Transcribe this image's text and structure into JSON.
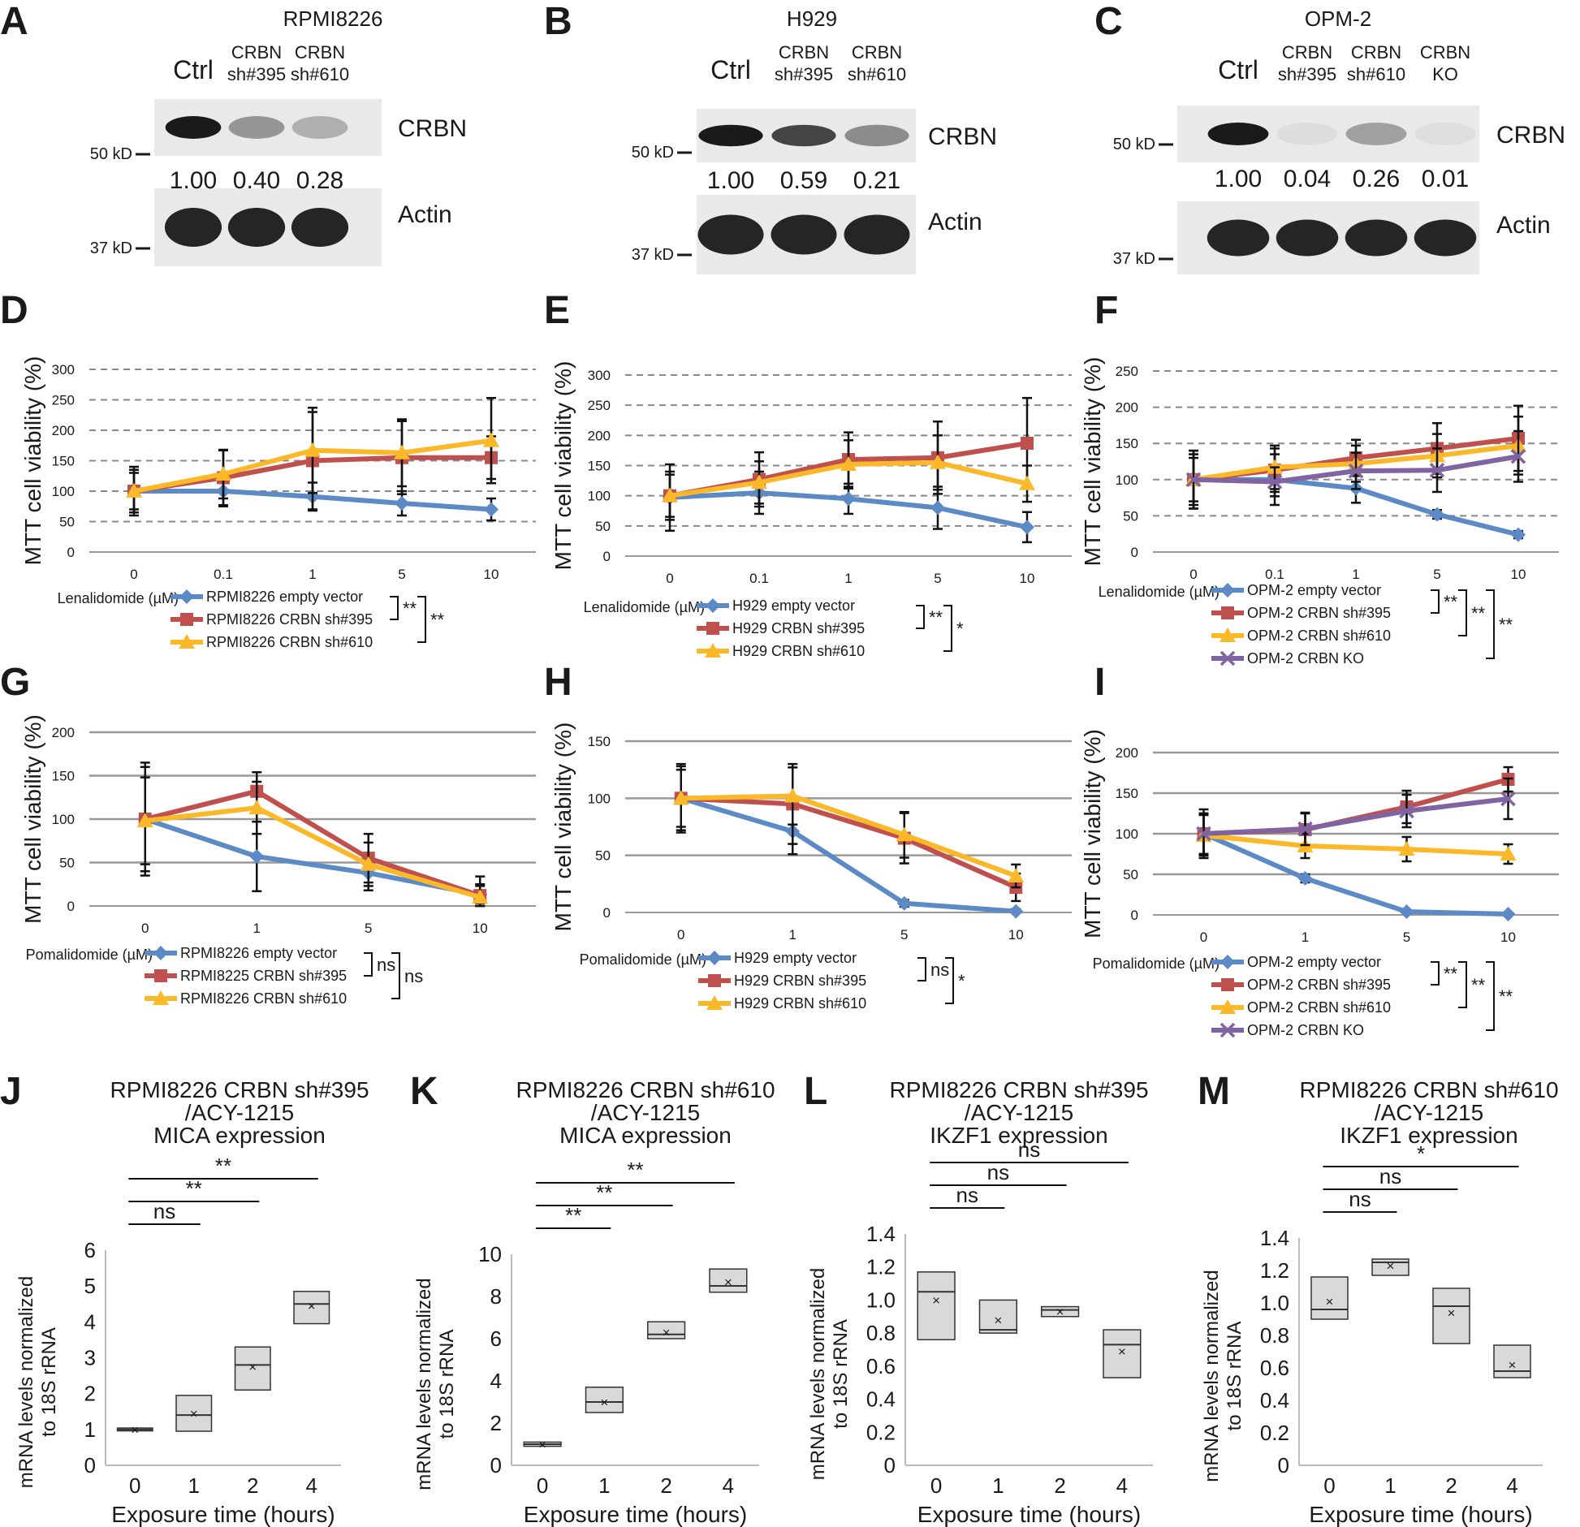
{
  "colors": {
    "blue": "#5b8ac6",
    "red": "#c0504d",
    "yellow": "#fbb829",
    "purple": "#8064a2",
    "grid_dashed": "#888888",
    "grid_solid": "#999999",
    "box_fill": "#d9d9d9",
    "blot_bg": "#e9e9e9",
    "band": "#1a1a1a"
  },
  "western_blots": [
    {
      "panel": "A",
      "cell_line": "RPMI8226",
      "lanes": [
        "Ctrl",
        "CRBN\nsh#395",
        "CRBN\nsh#610"
      ],
      "crbn_label": "CRBN",
      "actin_label": "Actin",
      "quant": [
        "1.00",
        "0.40",
        "0.28"
      ],
      "kd_top": "50 kD",
      "kd_bottom": "37 kD",
      "crbn_intensity": [
        1.0,
        0.4,
        0.28
      ]
    },
    {
      "panel": "B",
      "cell_line": "H929",
      "lanes": [
        "Ctrl",
        "CRBN\nsh#395",
        "CRBN\nsh#610"
      ],
      "crbn_label": "CRBN",
      "actin_label": "Actin",
      "quant": [
        "1.00",
        "0.59",
        "0.21"
      ],
      "kd_top": "50 kD",
      "kd_bottom": "37 kD",
      "crbn_intensity": [
        1.0,
        0.8,
        0.45
      ]
    },
    {
      "panel": "C",
      "cell_line": "OPM-2",
      "lanes": [
        "Ctrl",
        "CRBN\nsh#395",
        "CRBN\nsh#610",
        "CRBN\nKO"
      ],
      "crbn_label": "CRBN",
      "actin_label": "Actin",
      "quant": [
        "1.00",
        "0.04",
        "0.26",
        "0.01"
      ],
      "kd_top": "50 kD",
      "kd_bottom": "37 kD",
      "crbn_intensity": [
        1.0,
        0.06,
        0.35,
        0.03
      ]
    }
  ],
  "chart_data": [
    {
      "panel": "D",
      "type": "line",
      "categories": [
        "0",
        "0.1",
        "1",
        "5",
        "10"
      ],
      "xlabel": "Lenalidomide (µM)",
      "ylabel": "MTT cell viability (%)",
      "ylim": [
        0,
        300
      ],
      "yticks": [
        0,
        50,
        100,
        150,
        200,
        250,
        300
      ],
      "grid": "dashed",
      "series": [
        {
          "name": "RPMI8226 empty vector",
          "color": "blue",
          "marker": "diamond",
          "values": [
            100,
            100,
            91,
            80,
            70
          ],
          "err": [
            40,
            25,
            23,
            20,
            18
          ]
        },
        {
          "name": "RPMI8226 CRBN sh#395",
          "color": "red",
          "marker": "square",
          "values": [
            100,
            122,
            150,
            155,
            155
          ],
          "err": [
            35,
            45,
            80,
            60,
            35
          ]
        },
        {
          "name": "RPMI8226 CRBN sh#610",
          "color": "yellow",
          "marker": "triangle",
          "values": [
            100,
            128,
            167,
            163,
            183
          ],
          "err": [
            30,
            40,
            70,
            55,
            70
          ]
        }
      ],
      "significance": [
        {
          "text": "**",
          "from": 0,
          "to": 1
        },
        {
          "text": "**",
          "from": 0,
          "to": 2
        }
      ]
    },
    {
      "panel": "E",
      "type": "line",
      "categories": [
        "0",
        "0.1",
        "1",
        "5",
        "10"
      ],
      "xlabel": "Lenalidomide (µM)",
      "ylabel": "MTT cell viability (%)",
      "ylim": [
        0,
        300
      ],
      "yticks": [
        0,
        50,
        100,
        150,
        200,
        250,
        300
      ],
      "grid": "dashed",
      "series": [
        {
          "name": "H929 empty vector",
          "color": "blue",
          "marker": "diamond",
          "values": [
            97,
            105,
            95,
            80,
            48
          ],
          "err": [
            55,
            35,
            25,
            35,
            25
          ]
        },
        {
          "name": "H929 CRBN sh#395",
          "color": "red",
          "marker": "square",
          "values": [
            100,
            127,
            160,
            163,
            187
          ],
          "err": [
            40,
            45,
            45,
            60,
            75
          ]
        },
        {
          "name": "H929 CRBN sh#610",
          "color": "yellow",
          "marker": "triangle",
          "values": [
            100,
            122,
            152,
            155,
            120
          ],
          "err": [
            35,
            35,
            40,
            45,
            30
          ]
        }
      ],
      "significance": [
        {
          "text": "**",
          "from": 0,
          "to": 1
        },
        {
          "text": "*",
          "from": 0,
          "to": 2
        }
      ]
    },
    {
      "panel": "F",
      "type": "line",
      "categories": [
        "0",
        "0.1",
        "1",
        "5",
        "10"
      ],
      "xlabel": "Lenalidomide (µM)",
      "ylabel": "MTT cell viability (%)",
      "ylim": [
        0,
        250
      ],
      "yticks": [
        0,
        50,
        100,
        150,
        200,
        250
      ],
      "grid": "dashed",
      "series": [
        {
          "name": "OPM-2 empty vector",
          "color": "blue",
          "marker": "diamond",
          "values": [
            100,
            100,
            88,
            52,
            24
          ],
          "err": [
            40,
            35,
            20,
            6,
            5
          ]
        },
        {
          "name": "OPM-2 CRBN sh#395",
          "color": "red",
          "marker": "square",
          "values": [
            100,
            113,
            130,
            143,
            157
          ],
          "err": [
            40,
            30,
            25,
            35,
            45
          ]
        },
        {
          "name": "OPM-2 CRBN sh#610",
          "color": "yellow",
          "marker": "triangle",
          "values": [
            100,
            117,
            122,
            133,
            147
          ],
          "err": [
            35,
            30,
            25,
            30,
            40
          ]
        },
        {
          "name": "OPM-2 CRBN KO",
          "color": "purple",
          "marker": "x",
          "values": [
            100,
            97,
            112,
            113,
            132
          ],
          "err": [
            30,
            20,
            25,
            30,
            35
          ]
        }
      ],
      "significance": [
        {
          "text": "**",
          "from": 0,
          "to": 1
        },
        {
          "text": "**",
          "from": 0,
          "to": 2
        },
        {
          "text": "**",
          "from": 0,
          "to": 3
        }
      ]
    },
    {
      "panel": "G",
      "type": "line",
      "categories": [
        "0",
        "1",
        "5",
        "10"
      ],
      "xlabel": "Pomalidomide (µM)",
      "ylabel": "MTT cell viability (%)",
      "ylim": [
        0,
        200
      ],
      "yticks": [
        0,
        50,
        100,
        150,
        200
      ],
      "grid": "solid",
      "series": [
        {
          "name": "RPMI8226 empty vector",
          "color": "blue",
          "marker": "diamond",
          "values": [
            100,
            57,
            38,
            13
          ],
          "err": [
            65,
            40,
            20,
            10
          ]
        },
        {
          "name": "RPMI8225 CRBN sh#395",
          "color": "red",
          "marker": "square",
          "values": [
            100,
            132,
            55,
            12
          ],
          "err": [
            60,
            22,
            28,
            22
          ]
        },
        {
          "name": "RPMI8226 CRBN sh#610",
          "color": "yellow",
          "marker": "triangle",
          "values": [
            98,
            113,
            48,
            10
          ],
          "err": [
            50,
            30,
            25,
            15
          ]
        }
      ],
      "significance": [
        {
          "text": "ns",
          "from": 0,
          "to": 1
        },
        {
          "text": "ns",
          "from": 0,
          "to": 2
        }
      ]
    },
    {
      "panel": "H",
      "type": "line",
      "categories": [
        "0",
        "1",
        "5",
        "10"
      ],
      "xlabel": "Pomalidomide (µM)",
      "ylabel": "MTT cell viability (%)",
      "ylim": [
        0,
        150
      ],
      "yticks": [
        0,
        50,
        100,
        150
      ],
      "grid": "solid",
      "series": [
        {
          "name": "H929 empty vector",
          "color": "blue",
          "marker": "diamond",
          "values": [
            100,
            71,
            8,
            1
          ],
          "err": [
            30,
            20,
            3,
            2
          ]
        },
        {
          "name": "H929 CRBN sh#395",
          "color": "red",
          "marker": "square",
          "values": [
            100,
            95,
            65,
            22
          ],
          "err": [
            25,
            35,
            22,
            12
          ]
        },
        {
          "name": "H929 CRBN sh#610",
          "color": "yellow",
          "marker": "triangle",
          "values": [
            100,
            102,
            68,
            32
          ],
          "err": [
            28,
            25,
            20,
            10
          ]
        }
      ],
      "significance": [
        {
          "text": "ns",
          "from": 0,
          "to": 1
        },
        {
          "text": "*",
          "from": 0,
          "to": 2
        }
      ]
    },
    {
      "panel": "I",
      "type": "line",
      "categories": [
        "0",
        "1",
        "5",
        "10"
      ],
      "xlabel": "Pomalidomide (µM)",
      "ylabel": "MTT cell viability (%)",
      "ylim": [
        0,
        200
      ],
      "yticks": [
        0,
        50,
        100,
        150,
        200
      ],
      "grid": "solid",
      "series": [
        {
          "name": "OPM-2 empty vector",
          "color": "blue",
          "marker": "diamond",
          "values": [
            100,
            45,
            4,
            1
          ],
          "err": [
            30,
            5,
            2,
            1
          ]
        },
        {
          "name": "OPM-2 CRBN sh#395",
          "color": "red",
          "marker": "square",
          "values": [
            100,
            105,
            133,
            167
          ],
          "err": [
            25,
            20,
            20,
            15
          ]
        },
        {
          "name": "OPM-2 CRBN sh#610",
          "color": "yellow",
          "marker": "triangle",
          "values": [
            98,
            85,
            81,
            75
          ],
          "err": [
            25,
            15,
            15,
            12
          ]
        },
        {
          "name": "OPM-2 CRBN KO",
          "color": "purple",
          "marker": "x",
          "values": [
            100,
            106,
            128,
            143
          ],
          "err": [
            25,
            20,
            20,
            25
          ]
        }
      ],
      "significance": [
        {
          "text": "**",
          "from": 0,
          "to": 1
        },
        {
          "text": "**",
          "from": 0,
          "to": 2
        },
        {
          "text": "**",
          "from": 0,
          "to": 3
        }
      ]
    },
    {
      "panel": "J",
      "type": "box",
      "title": [
        "RPMI8226 CRBN sh#395",
        "/ACY-1215",
        "MICA expression"
      ],
      "categories": [
        "0",
        "1",
        "2",
        "4"
      ],
      "xlabel": "Exposure time (hours)",
      "ylabel": [
        "mRNA levels normalized",
        "to 18S rRNA"
      ],
      "ylim": [
        0,
        6
      ],
      "yticks": [
        "0",
        "1",
        "2",
        "3",
        "4",
        "5",
        "6"
      ],
      "ytick_values": [
        0,
        1,
        2,
        3,
        4,
        5,
        6
      ],
      "boxes": [
        {
          "q1": 0.96,
          "median": 1.0,
          "q3": 1.04,
          "mean": 1.0
        },
        {
          "q1": 0.95,
          "median": 1.4,
          "q3": 1.95,
          "mean": 1.45
        },
        {
          "q1": 2.1,
          "median": 2.8,
          "q3": 3.3,
          "mean": 2.75
        },
        {
          "q1": 3.95,
          "median": 4.5,
          "q3": 4.85,
          "mean": 4.45
        }
      ],
      "significance": [
        {
          "text": "ns",
          "to": 1
        },
        {
          "text": "**",
          "to": 2
        },
        {
          "text": "**",
          "to": 3
        }
      ]
    },
    {
      "panel": "K",
      "type": "box",
      "title": [
        "RPMI8226 CRBN sh#610",
        "/ACY-1215",
        "MICA expression"
      ],
      "categories": [
        "0",
        "1",
        "2",
        "4"
      ],
      "xlabel": "Exposure time (hours)",
      "ylabel": [
        "mRNA levels normalized",
        "to 18S rRNA"
      ],
      "ylim": [
        0,
        10
      ],
      "yticks": [
        "0",
        "2",
        "4",
        "6",
        "8",
        "10"
      ],
      "ytick_values": [
        0,
        2,
        4,
        6,
        8,
        10
      ],
      "boxes": [
        {
          "q1": 0.9,
          "median": 1.0,
          "q3": 1.1,
          "mean": 1.0
        },
        {
          "q1": 2.5,
          "median": 3.0,
          "q3": 3.7,
          "mean": 3.0
        },
        {
          "q1": 6.0,
          "median": 6.2,
          "q3": 6.8,
          "mean": 6.3
        },
        {
          "q1": 8.2,
          "median": 8.5,
          "q3": 9.3,
          "mean": 8.7
        }
      ],
      "significance": [
        {
          "text": "**",
          "to": 1
        },
        {
          "text": "**",
          "to": 2
        },
        {
          "text": "**",
          "to": 3
        }
      ]
    },
    {
      "panel": "L",
      "type": "box",
      "title": [
        "RPMI8226 CRBN sh#395",
        "/ACY-1215",
        "IKZF1 expression"
      ],
      "categories": [
        "0",
        "1",
        "2",
        "4"
      ],
      "xlabel": "Exposure time (hours)",
      "ylabel": [
        "mRNA levels normalized",
        "to 18S rRNA"
      ],
      "ylim": [
        0,
        1.4
      ],
      "yticks": [
        "0",
        "0.2",
        "0.4",
        "0.6",
        "0.8",
        "1.0",
        "1.2",
        "1.4"
      ],
      "ytick_values": [
        0,
        0.2,
        0.4,
        0.6,
        0.8,
        1.0,
        1.2,
        1.4
      ],
      "boxes": [
        {
          "q1": 0.76,
          "median": 1.05,
          "q3": 1.17,
          "mean": 1.0
        },
        {
          "q1": 0.8,
          "median": 0.82,
          "q3": 1.0,
          "mean": 0.88
        },
        {
          "q1": 0.9,
          "median": 0.94,
          "q3": 0.96,
          "mean": 0.93
        },
        {
          "q1": 0.53,
          "median": 0.73,
          "q3": 0.82,
          "mean": 0.69
        }
      ],
      "significance": [
        {
          "text": "ns",
          "to": 1
        },
        {
          "text": "ns",
          "to": 2
        },
        {
          "text": "ns",
          "to": 3
        }
      ]
    },
    {
      "panel": "M",
      "type": "box",
      "title": [
        "RPMI8226 CRBN sh#610",
        "/ACY-1215",
        "IKZF1 expression"
      ],
      "categories": [
        "0",
        "1",
        "2",
        "4"
      ],
      "xlabel": "Exposure time (hours)",
      "ylabel": [
        "mRNA levels normalized",
        "to 18S rRNA"
      ],
      "ylim": [
        0,
        1.4
      ],
      "yticks": [
        "0",
        "0.2",
        "0.4",
        "0.6",
        "0.8",
        "1.0",
        "1.2",
        "1.4"
      ],
      "ytick_values": [
        0,
        0.2,
        0.4,
        0.6,
        0.8,
        1.0,
        1.2,
        1.4
      ],
      "boxes": [
        {
          "q1": 0.9,
          "median": 0.96,
          "q3": 1.16,
          "mean": 1.01
        },
        {
          "q1": 1.17,
          "median": 1.25,
          "q3": 1.27,
          "mean": 1.23
        },
        {
          "q1": 0.75,
          "median": 0.98,
          "q3": 1.09,
          "mean": 0.94
        },
        {
          "q1": 0.54,
          "median": 0.58,
          "q3": 0.74,
          "mean": 0.62
        }
      ],
      "significance": [
        {
          "text": "ns",
          "to": 1
        },
        {
          "text": "ns",
          "to": 2
        },
        {
          "text": "*",
          "to": 3
        }
      ]
    }
  ]
}
